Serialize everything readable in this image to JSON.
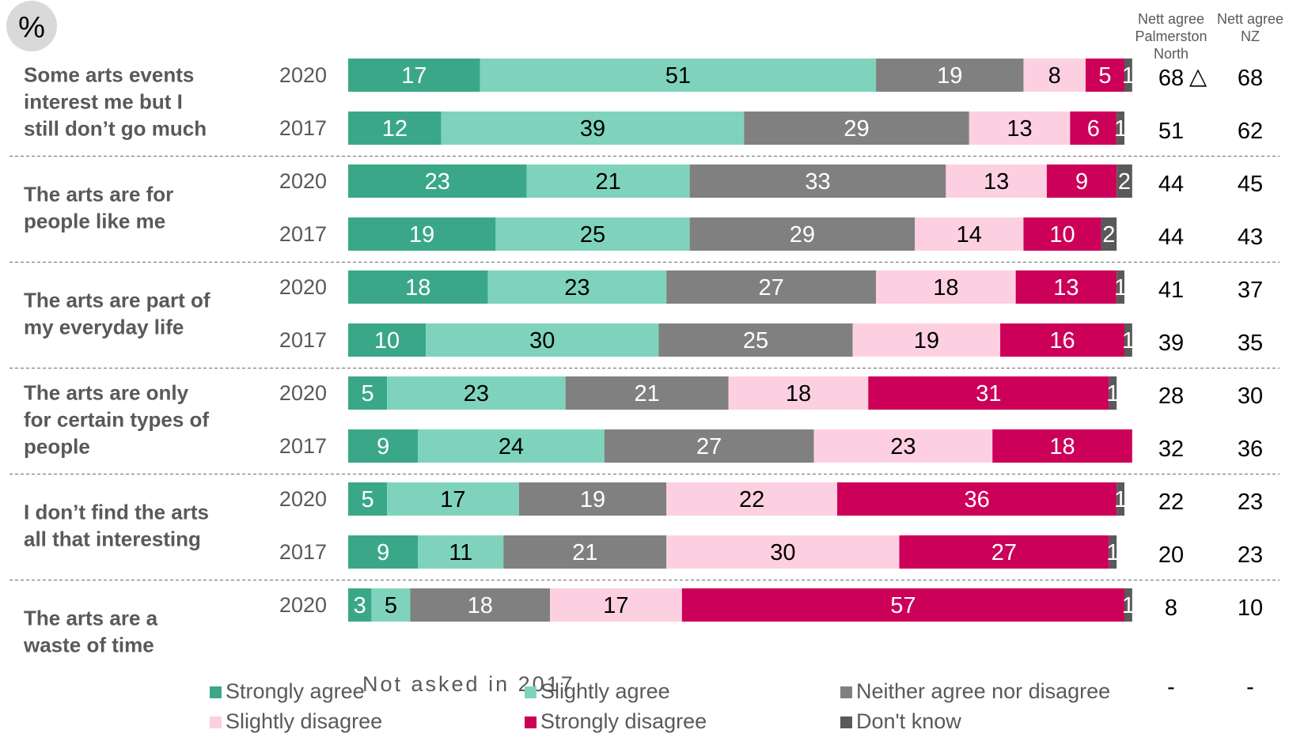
{
  "unit_badge": "%",
  "headers": {
    "palmerston": [
      "Nett agree",
      "Palmerston",
      "North"
    ],
    "nz": [
      "Nett agree",
      "NZ"
    ]
  },
  "colors": {
    "Strongly agree": "#3aa888",
    "Slightly agree": "#7fd3bc",
    "Neither agree nor disagree": "#808080",
    "Slightly disagree": "#fdd0e1",
    "Strongly disagree": "#cc0059",
    "Don't know": "#595959",
    "separator": "#7f7f7f",
    "badge": "#d9d9d9"
  },
  "chart_data": {
    "type": "bar",
    "orientation": "horizontal",
    "stacked": true,
    "unit": "%",
    "xlim": [
      0,
      100
    ],
    "series_names": [
      "Strongly agree",
      "Slightly agree",
      "Neither agree nor disagree",
      "Slightly disagree",
      "Strongly disagree",
      "Don't know"
    ],
    "legend": [
      "Strongly agree",
      "Slightly agree",
      "Neither agree nor disagree",
      "Slightly disagree",
      "Strongly disagree",
      "Don't know"
    ],
    "legend_position": "bottom",
    "statements": [
      {
        "label": [
          "Some arts events",
          "interest me but I",
          "still don’t go much"
        ],
        "rows": [
          {
            "year": "2020",
            "values": [
              17,
              51,
              19,
              8,
              5,
              1
            ],
            "nett_pn": "68",
            "flag": "△",
            "nett_nz": "68"
          },
          {
            "year": "2017",
            "values": [
              12,
              39,
              29,
              13,
              6,
              1
            ],
            "nett_pn": "51",
            "flag": "",
            "nett_nz": "62"
          }
        ]
      },
      {
        "label": [
          "The arts are for",
          "people like me"
        ],
        "rows": [
          {
            "year": "2020",
            "values": [
              23,
              21,
              33,
              13,
              9,
              2
            ],
            "nett_pn": "44",
            "flag": "",
            "nett_nz": "45"
          },
          {
            "year": "2017",
            "values": [
              19,
              25,
              29,
              14,
              10,
              2
            ],
            "nett_pn": "44",
            "flag": "",
            "nett_nz": "43"
          }
        ]
      },
      {
        "label": [
          "The arts are part of",
          "my everyday life"
        ],
        "rows": [
          {
            "year": "2020",
            "values": [
              18,
              23,
              27,
              18,
              13,
              1
            ],
            "nett_pn": "41",
            "flag": "",
            "nett_nz": "37"
          },
          {
            "year": "2017",
            "values": [
              10,
              30,
              25,
              19,
              16,
              1
            ],
            "nett_pn": "39",
            "flag": "",
            "nett_nz": "35"
          }
        ]
      },
      {
        "label": [
          "The arts are only",
          "for certain types of",
          "people"
        ],
        "rows": [
          {
            "year": "2020",
            "values": [
              5,
              23,
              21,
              18,
              31,
              1
            ],
            "nett_pn": "28",
            "flag": "",
            "nett_nz": "30"
          },
          {
            "year": "2017",
            "values": [
              9,
              24,
              27,
              23,
              18,
              0
            ],
            "nett_pn": "32",
            "flag": "",
            "nett_nz": "36"
          }
        ]
      },
      {
        "label": [
          "I don’t find the arts",
          "all that interesting"
        ],
        "rows": [
          {
            "year": "2020",
            "values": [
              5,
              17,
              19,
              22,
              36,
              1
            ],
            "nett_pn": "22",
            "flag": "",
            "nett_nz": "23"
          },
          {
            "year": "2017",
            "values": [
              9,
              11,
              21,
              30,
              27,
              1
            ],
            "nett_pn": "20",
            "flag": "",
            "nett_nz": "23"
          }
        ]
      },
      {
        "label": [
          "The arts are a",
          "waste of time"
        ],
        "rows": [
          {
            "year": "2020",
            "values": [
              3,
              5,
              18,
              17,
              57,
              1
            ],
            "nett_pn": "8",
            "flag": "",
            "nett_nz": "10"
          },
          {
            "year": "",
            "note": "Not asked in 2017",
            "values": [],
            "nett_pn": "-",
            "flag": "",
            "nett_nz": "-"
          }
        ]
      }
    ]
  }
}
